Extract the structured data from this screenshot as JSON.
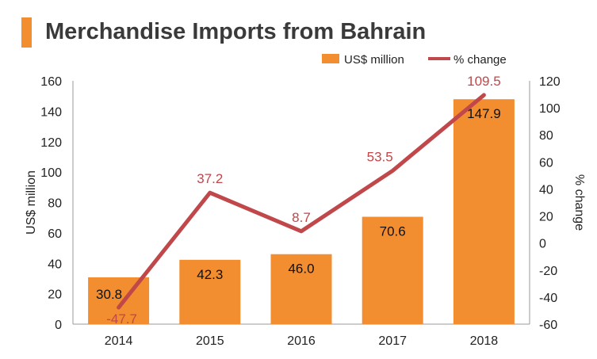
{
  "colors": {
    "bar": "#F28E2F",
    "line": "#C0474A",
    "title_accent": "#F28E2F",
    "title_text": "#3a3a3a",
    "axis": "#9a9a9a",
    "tick_text": "#222222"
  },
  "chart_data": {
    "type": "bar",
    "title": "Merchandise Imports from Bahrain",
    "categories": [
      "2014",
      "2015",
      "2016",
      "2017",
      "2018"
    ],
    "series": [
      {
        "name": "US$ million",
        "type": "bar",
        "axis": "left",
        "values": [
          30.8,
          42.3,
          46.0,
          70.6,
          147.9
        ],
        "labels": [
          "30.8",
          "42.3",
          "46.0",
          "70.6",
          "147.9"
        ]
      },
      {
        "name": "% change",
        "type": "line",
        "axis": "right",
        "values": [
          -47.7,
          37.2,
          8.7,
          53.5,
          109.5
        ],
        "labels": [
          "-47.7",
          "37.2",
          "8.7",
          "53.5",
          "109.5"
        ]
      }
    ],
    "ylabel": "US$ million",
    "y2label": "% change",
    "ylim": [
      0,
      160
    ],
    "y2lim": [
      -60,
      120
    ],
    "yticks": [
      "0",
      "20",
      "40",
      "60",
      "80",
      "100",
      "120",
      "140",
      "160"
    ],
    "y2ticks": [
      "-60",
      "-40",
      "-20",
      "0",
      "20",
      "40",
      "60",
      "80",
      "100",
      "120"
    ],
    "grid": false,
    "legend_position": "top-right"
  }
}
